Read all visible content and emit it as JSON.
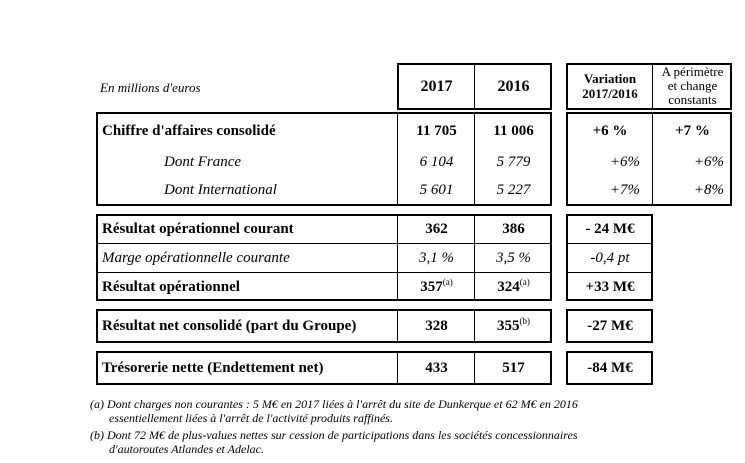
{
  "header": {
    "unit_label": "En millions d'euros",
    "col_2017": "2017",
    "col_2016": "2016",
    "col_variation_line1": "Variation",
    "col_variation_line2": "2017/2016",
    "col_perimetre_line1": "A périmètre",
    "col_perimetre_line2": "et change",
    "col_perimetre_line3": "constants"
  },
  "rows": {
    "ca": {
      "label": "Chiffre d'affaires consolidé",
      "v2017": "11 705",
      "v2016": "11 006",
      "variation": "+6 %",
      "perimetre": "+7 %"
    },
    "france": {
      "label": "Dont France",
      "v2017": "6 104",
      "v2016": "5 779",
      "variation": "+6%",
      "perimetre": "+6%"
    },
    "international": {
      "label": "Dont International",
      "v2017": "5 601",
      "v2016": "5 227",
      "variation": "+7%",
      "perimetre": "+8%"
    },
    "roc": {
      "label": "Résultat opérationnel courant",
      "v2017": "362",
      "v2016": "386",
      "variation": "- 24 M€"
    },
    "marge": {
      "label": "Marge opérationnelle courante",
      "v2017": "3,1 %",
      "v2016": "3,5 %",
      "variation": "-0,4 pt"
    },
    "ro": {
      "label": "Résultat opérationnel",
      "v2017": "357",
      "v2017_note": "(a)",
      "v2016": "324",
      "v2016_note": "(a)",
      "variation": "+33 M€"
    },
    "rn": {
      "label": "Résultat net consolidé (part du Groupe)",
      "v2017": "328",
      "v2016": "355",
      "v2016_note": "(b)",
      "variation": "-27 M€"
    },
    "treso": {
      "label": "Trésorerie nette (Endettement net)",
      "v2017": "433",
      "v2016": "517",
      "variation": "-84 M€"
    }
  },
  "footnotes": {
    "a_line1": "(a) Dont charges non courantes : 5 M€ en 2017 liées à l'arrêt du site de Dunkerque et 62 M€ en 2016",
    "a_line2": "essentiellement liées à l'arrêt de l'activité produits raffinés.",
    "b_line1": "(b) Dont 72 M€ de plus-values nettes sur cession de participations dans les sociétés concessionnaires",
    "b_line2": "d'autoroutes Atlandes et Adelac."
  }
}
